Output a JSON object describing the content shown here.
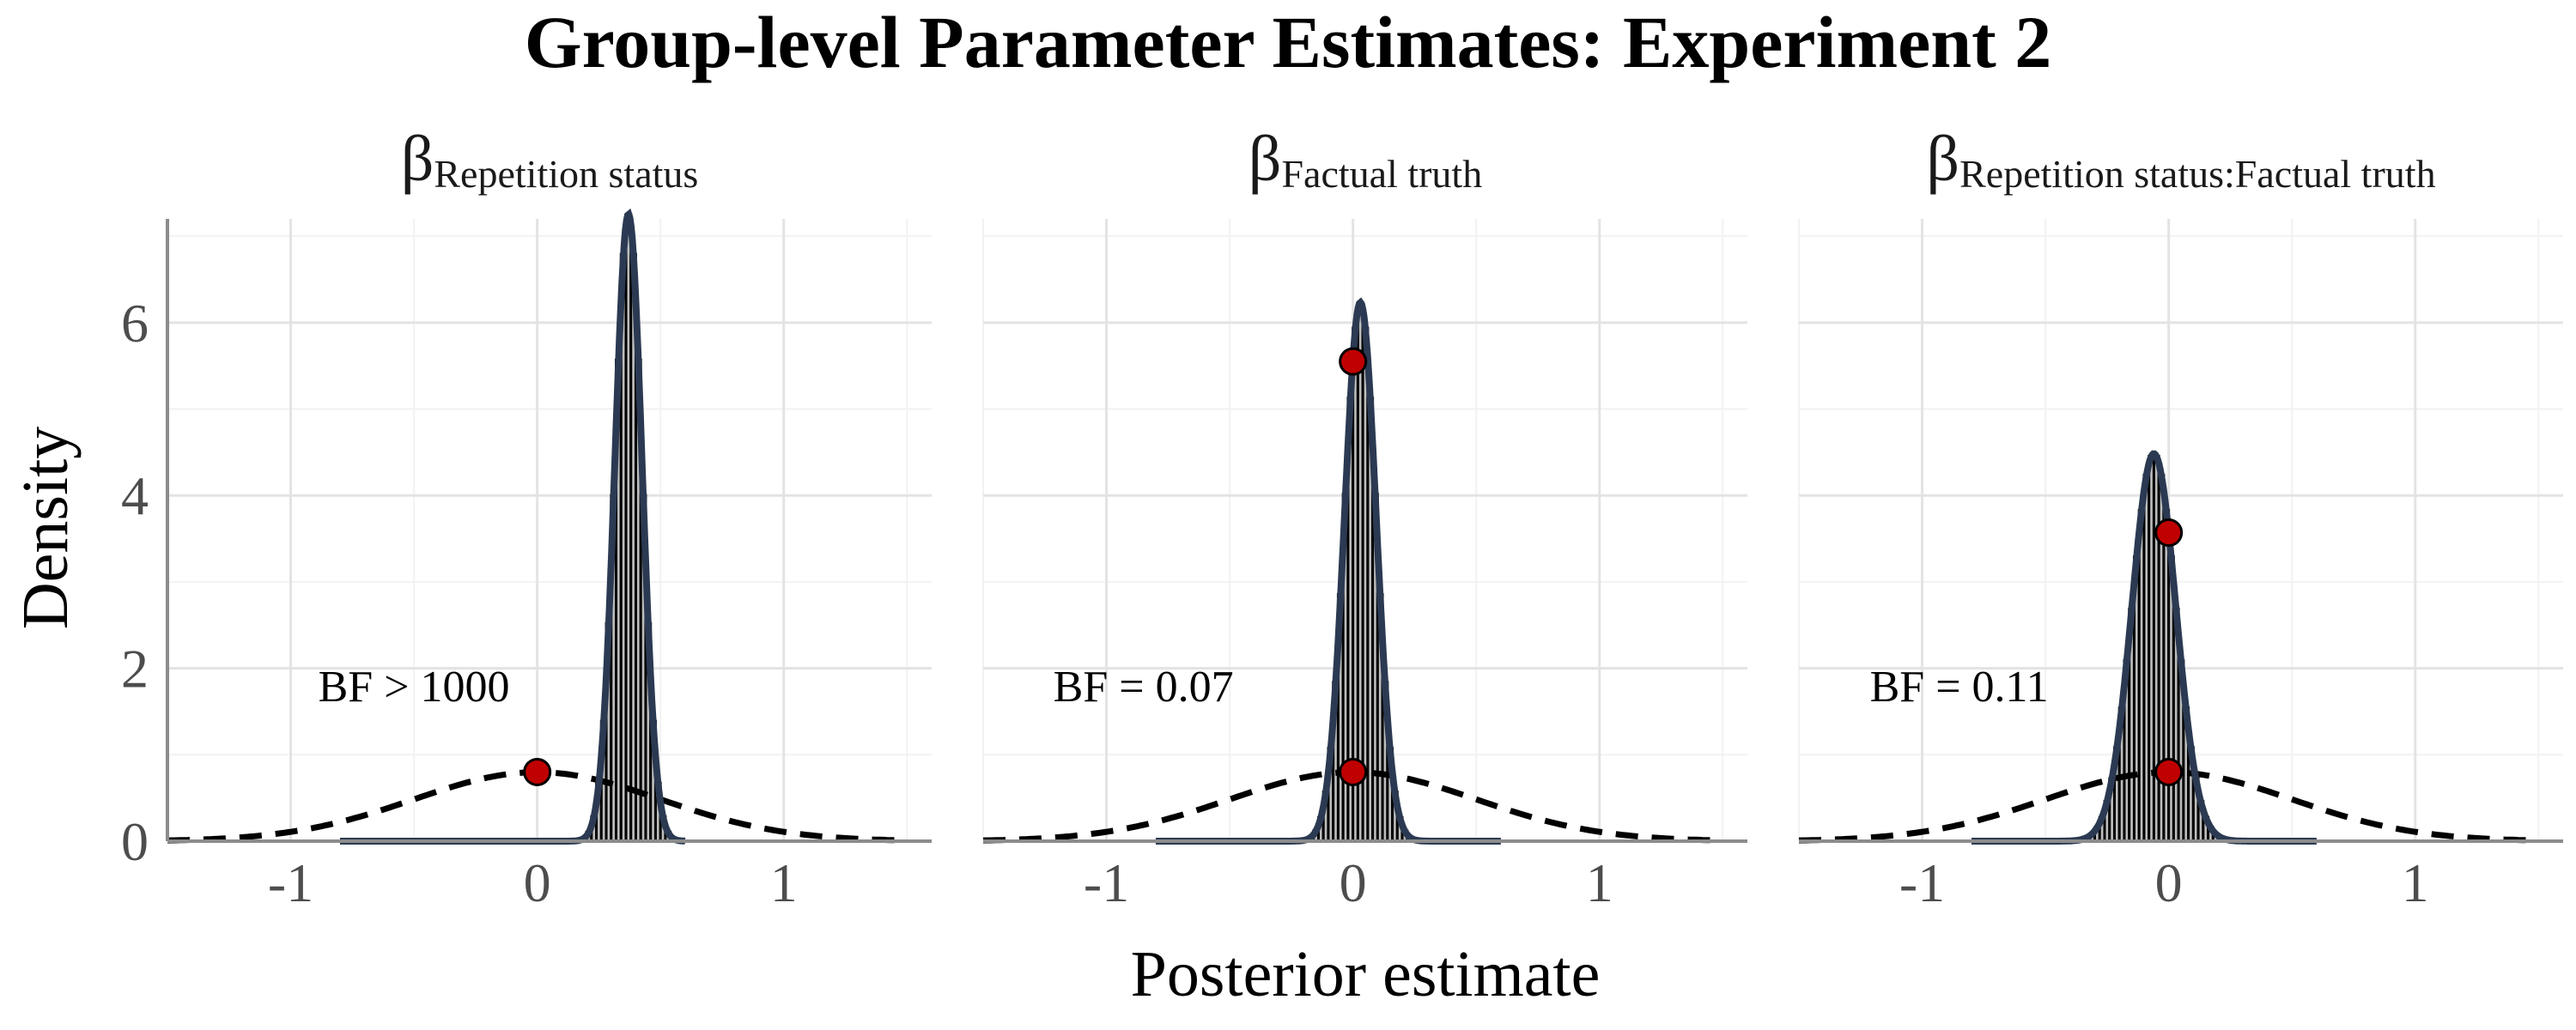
{
  "chart_data": {
    "type": "faceted-density-histogram",
    "title": "Group-level Parameter Estimates: Experiment 2",
    "xlabel": "Posterior estimate",
    "ylabel": "Density",
    "xlim": [
      -1.5,
      1.6
    ],
    "ylim": [
      0,
      7.2
    ],
    "x_ticks": [
      -1,
      0,
      1
    ],
    "x_tick_labels": [
      "-1",
      "0",
      "1"
    ],
    "y_ticks": [
      0,
      2,
      4,
      6
    ],
    "y_tick_labels": [
      "0",
      "2",
      "4",
      "6"
    ],
    "grid": true,
    "legend": "none",
    "prior": {
      "distribution": "normal",
      "mean": 0,
      "sd": 0.5,
      "density_at_zero": 0.8
    },
    "colors": {
      "histogram_fill": "#bdbdbd",
      "posterior_line": "#2b3a52",
      "prior_line": "#000000",
      "point": "#c00000"
    },
    "panels": [
      {
        "strip_symbol": "β",
        "strip_subscript": "Repetition status",
        "bf_label": "BF > 1000",
        "bf_x": -0.5,
        "bf_y": 1.8,
        "posterior_mean": 0.37,
        "posterior_sd": 0.055,
        "points": [
          {
            "x": 0,
            "y": 0.8
          }
        ]
      },
      {
        "strip_symbol": "β",
        "strip_subscript": "Factual truth",
        "bf_label": "BF = 0.07",
        "bf_x": -0.85,
        "bf_y": 1.8,
        "posterior_mean": 0.03,
        "posterior_sd": 0.064,
        "points": [
          {
            "x": 0,
            "y": 5.55
          },
          {
            "x": 0,
            "y": 0.8
          }
        ]
      },
      {
        "strip_symbol": "β",
        "strip_subscript": "Repetition status:Factual truth",
        "bf_label": "BF = 0.11",
        "bf_x": -0.85,
        "bf_y": 1.8,
        "posterior_mean": -0.06,
        "posterior_sd": 0.089,
        "points": [
          {
            "x": 0,
            "y": 3.57
          },
          {
            "x": 0,
            "y": 0.8
          }
        ]
      }
    ]
  }
}
